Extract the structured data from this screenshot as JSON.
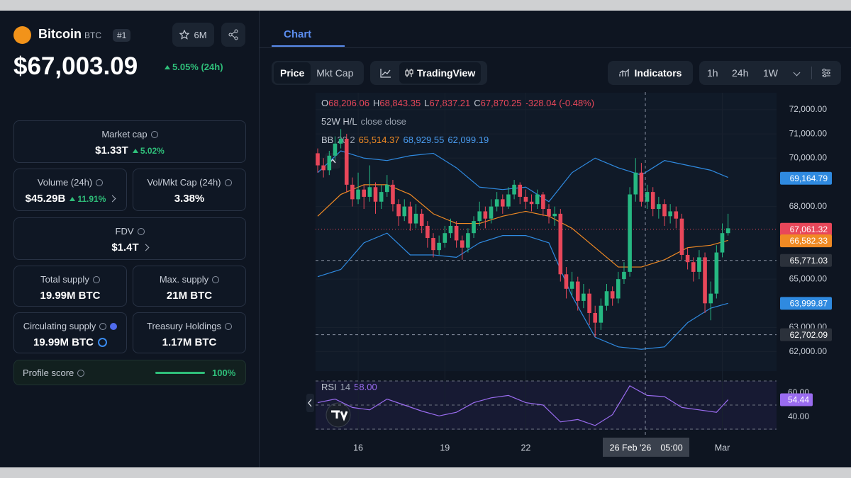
{
  "coin": {
    "name": "Bitcoin",
    "symbol": "BTC",
    "rank": "#1",
    "watchlist": "6M",
    "price": "$67,003.09",
    "change": "5.05% (24h)"
  },
  "stats": {
    "market_cap": {
      "label": "Market cap",
      "value": "$1.33T",
      "change": "5.02%"
    },
    "volume": {
      "label": "Volume (24h)",
      "value": "$45.29B",
      "change": "11.91%"
    },
    "vol_mkt": {
      "label": "Vol/Mkt Cap (24h)",
      "value": "3.38%"
    },
    "fdv": {
      "label": "FDV",
      "value": "$1.4T"
    },
    "total_supply": {
      "label": "Total supply",
      "value": "19.99M BTC"
    },
    "max_supply": {
      "label": "Max. supply",
      "value": "21M BTC"
    },
    "circulating": {
      "label": "Circulating supply",
      "value": "19.99M BTC"
    },
    "treasury": {
      "label": "Treasury Holdings",
      "value": "1.17M BTC"
    },
    "profile_score": {
      "label": "Profile score",
      "value": 100,
      "value_label": "100%"
    }
  },
  "tabs": [
    "Chart"
  ],
  "toolbar": {
    "series": [
      "Price",
      "Mkt Cap"
    ],
    "view": "TradingView",
    "indicators": "Indicators",
    "ranges": [
      "1h",
      "24h",
      "1W"
    ]
  },
  "chart": {
    "type": "candlestick",
    "up_color": "#26b882",
    "down_color": "#e8475a",
    "ohlc": [
      {
        "label": "O",
        "value": "68,206.06"
      },
      {
        "label": "H",
        "value": "68,843.35"
      },
      {
        "label": "L",
        "value": "67,837.21"
      },
      {
        "label": "C",
        "value": "67,870.25"
      }
    ],
    "ohlc_change": "-328.04 (-0.48%)",
    "w52": {
      "label": "52W H/L",
      "source": "close close"
    },
    "bb": {
      "label": "BB",
      "params": "20 2",
      "values": [
        "65,514.37",
        "68,929.55",
        "62,099.19"
      ]
    },
    "ylim": [
      61200,
      72700
    ],
    "yticks": [
      {
        "value": 72000,
        "label": "72,000.00"
      },
      {
        "value": 71000,
        "label": "71,000.00"
      },
      {
        "value": 70000,
        "label": "70,000.00"
      },
      {
        "value": 68000,
        "label": "68,000.00"
      },
      {
        "value": 65000,
        "label": "65,000.00"
      },
      {
        "value": 63000,
        "label": "63,000.00"
      },
      {
        "value": 62000,
        "label": "62,000.00"
      }
    ],
    "xticks": [
      {
        "value": 7,
        "label": "16"
      },
      {
        "value": 22,
        "label": "19"
      },
      {
        "value": 36,
        "label": "22"
      },
      {
        "value": 70,
        "label": "Mar"
      }
    ],
    "grid": true,
    "open": [
      70200,
      69700,
      69500,
      70100,
      70600,
      70800,
      68900,
      68300,
      68700,
      68400,
      68800,
      68200,
      68600,
      68900,
      68100,
      67600,
      68000,
      67300,
      67700,
      67200,
      66700,
      66200,
      66500,
      66900,
      67200,
      66600,
      66300,
      66900,
      67400,
      67800,
      67500,
      68000,
      68300,
      68000,
      68500,
      68900,
      68400,
      68200,
      68100,
      68500,
      67900,
      67600,
      67700,
      65200,
      64600,
      64900,
      64100,
      64400,
      63600,
      63200,
      63900,
      64500,
      64200,
      65000,
      65300,
      68500,
      69400,
      68200,
      68600,
      67900,
      68100,
      67600,
      67800,
      67500,
      66000,
      65700,
      65300,
      65900,
      64000,
      64400,
      66100,
      66900
    ],
    "high": [
      70400,
      70000,
      70300,
      70900,
      71200,
      71000,
      69200,
      69400,
      68900,
      69700,
      69000,
      68900,
      69300,
      69100,
      68300,
      68300,
      68200,
      68100,
      67900,
      67400,
      66900,
      66800,
      67200,
      67500,
      67400,
      66800,
      67100,
      67600,
      68200,
      68000,
      68300,
      68600,
      68500,
      68800,
      69100,
      69000,
      68700,
      68500,
      68700,
      68600,
      68100,
      68000,
      67900,
      65500,
      65300,
      65100,
      64800,
      64600,
      63900,
      64200,
      64800,
      64700,
      65300,
      65700,
      68800,
      70000,
      69800,
      68900,
      68800,
      68400,
      68300,
      68100,
      68000,
      67700,
      66300,
      65900,
      66200,
      66100,
      64900,
      66400,
      67300,
      67700
    ],
    "low": [
      69400,
      69200,
      69300,
      69900,
      70400,
      68600,
      68000,
      68100,
      67900,
      68200,
      67700,
      67900,
      68400,
      67800,
      67200,
      67400,
      67000,
      67100,
      66900,
      66300,
      65900,
      66000,
      66300,
      66700,
      66300,
      65800,
      66100,
      66700,
      67200,
      67100,
      67300,
      67800,
      67700,
      67900,
      68300,
      68100,
      67900,
      67800,
      67900,
      67600,
      67300,
      67200,
      64900,
      64200,
      64300,
      63700,
      63800,
      63100,
      62600,
      62900,
      63700,
      63900,
      64000,
      64800,
      65100,
      68200,
      68000,
      67900,
      67600,
      67500,
      67200,
      67300,
      67100,
      65800,
      65400,
      64900,
      65000,
      63600,
      63300,
      64200,
      65900,
      66800
    ],
    "close": [
      69700,
      69500,
      70100,
      70600,
      70800,
      68900,
      68300,
      68700,
      68400,
      68800,
      68200,
      68600,
      68900,
      68100,
      67600,
      68000,
      67300,
      67700,
      67200,
      66700,
      66200,
      66500,
      66900,
      67200,
      66600,
      66300,
      66900,
      67400,
      67800,
      67500,
      68000,
      68300,
      68000,
      68500,
      68900,
      68400,
      68200,
      68100,
      68500,
      67900,
      67600,
      67700,
      65200,
      64600,
      64900,
      64100,
      64400,
      63600,
      63200,
      63900,
      64500,
      64200,
      65000,
      65300,
      68500,
      69400,
      68200,
      68600,
      67900,
      68100,
      67600,
      67800,
      67500,
      66000,
      65700,
      65300,
      65900,
      64000,
      64400,
      66100,
      66900,
      67100
    ],
    "bands": {
      "x": [
        0,
        4,
        8,
        12,
        16,
        20,
        24,
        28,
        32,
        36,
        40,
        44,
        48,
        52,
        56,
        60,
        64,
        68,
        71
      ],
      "series": [
        {
          "color": "#2f8ae0",
          "values": [
            69400,
            70300,
            70000,
            69900,
            70100,
            70200,
            69600,
            68800,
            68700,
            68800,
            68200,
            69400,
            70000,
            69600,
            69300,
            69900,
            69700,
            69500,
            69200
          ]
        },
        {
          "color": "#f08a24",
          "values": [
            67600,
            68500,
            68900,
            68900,
            68500,
            67700,
            67300,
            67300,
            67600,
            67800,
            67600,
            67100,
            66300,
            65500,
            65500,
            65800,
            66300,
            66400,
            66600
          ]
        },
        {
          "color": "#2f8ae0",
          "values": [
            65100,
            65400,
            66500,
            66900,
            66000,
            66000,
            65900,
            66500,
            66800,
            66800,
            66500,
            64300,
            62600,
            62200,
            62100,
            62200,
            63200,
            63800,
            64000
          ]
        }
      ]
    },
    "markers": [
      {
        "value": 69164.79,
        "label": "69,164.79",
        "color": "#2f8ae0"
      },
      {
        "value": 67061.32,
        "label": "67,061.32",
        "color": "#e8475a",
        "line": "dotted"
      },
      {
        "value": 66582.33,
        "label": "66,582.33",
        "color": "#f08a24"
      },
      {
        "value": 65771.03,
        "label": "65,771.03",
        "color": "#2b313b",
        "line": "dashed"
      },
      {
        "value": 63999.87,
        "label": "63,999.87",
        "color": "#2f8ae0"
      },
      {
        "value": 62702.09,
        "label": "62,702.09",
        "color": "#2b313b",
        "line": "dashed"
      }
    ],
    "rsi": {
      "label": "RSI",
      "period": "14",
      "reading": "58.00",
      "color": "#9a6cf0",
      "ylim": [
        30,
        70
      ],
      "levels": [
        70,
        50,
        30
      ],
      "yticks": [
        {
          "value": 60,
          "label": "60.00"
        },
        {
          "value": 40,
          "label": "40.00"
        }
      ],
      "x": [
        0,
        3,
        6,
        9,
        12,
        15,
        18,
        21,
        24,
        27,
        30,
        33,
        36,
        39,
        42,
        45,
        48,
        51,
        54,
        57,
        60,
        63,
        66,
        69,
        71
      ],
      "values": [
        52,
        55,
        48,
        46,
        55,
        50,
        45,
        41,
        44,
        52,
        56,
        58,
        52,
        50,
        36,
        38,
        33,
        42,
        66,
        58,
        57,
        48,
        46,
        44,
        54.44
      ],
      "last": 54.44
    },
    "crosshair": {
      "date": "26 Feb '26",
      "time": "05:00"
    }
  }
}
